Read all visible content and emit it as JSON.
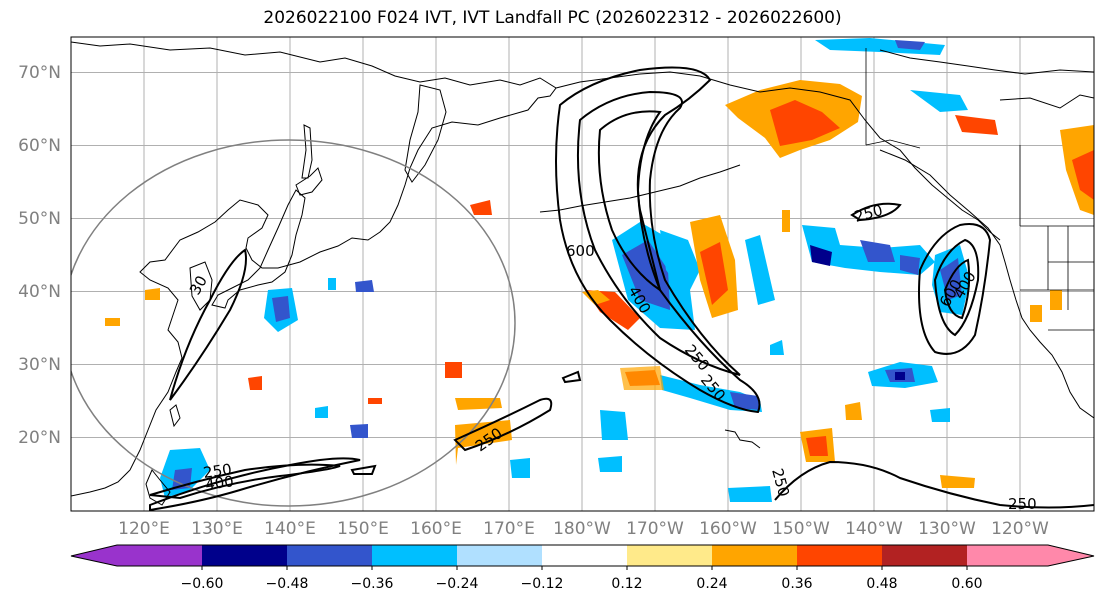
{
  "title": "2026022100 F024 IVT, IVT Landfall PC (2026022312 - 2026022600)",
  "map": {
    "projection": "plate-carree",
    "lon_range": [
      110,
      250
    ],
    "lat_range": [
      10,
      75
    ],
    "gridlines": true,
    "coastlines": true
  },
  "lat_ticks": [
    "20°N",
    "30°N",
    "40°N",
    "50°N",
    "60°N",
    "70°N"
  ],
  "lon_ticks": [
    "120°E",
    "130°E",
    "140°E",
    "150°E",
    "160°E",
    "170°E",
    "180°W",
    "170°W",
    "160°W",
    "150°W",
    "140°W",
    "130°W",
    "120°W"
  ],
  "contour_labels": [
    {
      "text": "600"
    },
    {
      "text": "400"
    },
    {
      "text": "250"
    },
    {
      "text": "250"
    },
    {
      "text": "250"
    },
    {
      "text": "600"
    },
    {
      "text": "400"
    },
    {
      "text": "250"
    },
    {
      "text": "250"
    },
    {
      "text": "400"
    },
    {
      "text": "250"
    },
    {
      "text": "250"
    },
    {
      "text": "30"
    }
  ],
  "colorbar": {
    "colors": [
      "#9933cc",
      "#00008b",
      "#3355cc",
      "#00bfff",
      "#b0e0ff",
      "#ffffff",
      "#ffea8a",
      "#ffa500",
      "#ff4500",
      "#b22222",
      "#ff88aa"
    ],
    "ticks": [
      "−0.60",
      "−0.48",
      "−0.36",
      "−0.24",
      "−0.12",
      "0.12",
      "0.24",
      "0.36",
      "0.48",
      "0.60"
    ],
    "extend": "both"
  }
}
